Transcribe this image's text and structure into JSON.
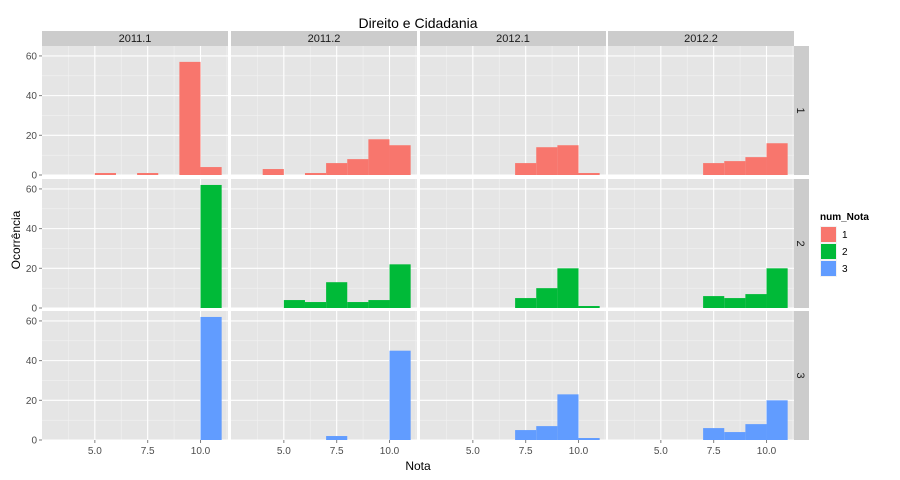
{
  "chart_data": {
    "type": "bar",
    "title": "Direito e Cidadania",
    "xlabel": "Nota",
    "ylabel": "Ocorrência",
    "col_facets": [
      "2011.1",
      "2011.2",
      "2012.1",
      "2012.2"
    ],
    "row_facets": [
      "1",
      "2",
      "3"
    ],
    "xlim": [
      2.5,
      11.3
    ],
    "ylim": [
      0,
      65
    ],
    "x_ticks": [
      5.0,
      7.5,
      10.0
    ],
    "x_tick_labels": [
      "5.0",
      "7.5",
      "10.0"
    ],
    "y_ticks": [
      0,
      20,
      40,
      60
    ],
    "y_tick_labels": [
      "0",
      "20",
      "40",
      "60"
    ],
    "bin_width": 1,
    "grid": true,
    "legend": {
      "title": "num_Nota",
      "placement": "right",
      "entries": [
        {
          "label": "1",
          "color": "#F8766D"
        },
        {
          "label": "2",
          "color": "#00BA38"
        },
        {
          "label": "3",
          "color": "#619CFF"
        }
      ]
    },
    "panels": [
      {
        "col": "2011.1",
        "row": "1",
        "bins": [
          {
            "x0": 5,
            "x1": 6,
            "y": 1
          },
          {
            "x0": 7,
            "x1": 8,
            "y": 1
          },
          {
            "x0": 9,
            "x1": 10,
            "y": 57
          },
          {
            "x0": 10,
            "x1": 11,
            "y": 4
          }
        ]
      },
      {
        "col": "2011.1",
        "row": "2",
        "bins": [
          {
            "x0": 10,
            "x1": 11,
            "y": 62
          }
        ]
      },
      {
        "col": "2011.1",
        "row": "3",
        "bins": [
          {
            "x0": 10,
            "x1": 11,
            "y": 62
          }
        ]
      },
      {
        "col": "2011.2",
        "row": "1",
        "bins": [
          {
            "x0": 4,
            "x1": 5,
            "y": 3
          },
          {
            "x0": 6,
            "x1": 7,
            "y": 1
          },
          {
            "x0": 7,
            "x1": 8,
            "y": 6
          },
          {
            "x0": 8,
            "x1": 9,
            "y": 8
          },
          {
            "x0": 9,
            "x1": 10,
            "y": 18
          },
          {
            "x0": 10,
            "x1": 11,
            "y": 15
          }
        ]
      },
      {
        "col": "2011.2",
        "row": "2",
        "bins": [
          {
            "x0": 5,
            "x1": 6,
            "y": 4
          },
          {
            "x0": 6,
            "x1": 7,
            "y": 3
          },
          {
            "x0": 7,
            "x1": 8,
            "y": 13
          },
          {
            "x0": 8,
            "x1": 9,
            "y": 3
          },
          {
            "x0": 9,
            "x1": 10,
            "y": 4
          },
          {
            "x0": 10,
            "x1": 11,
            "y": 22
          }
        ]
      },
      {
        "col": "2011.2",
        "row": "3",
        "bins": [
          {
            "x0": 7,
            "x1": 8,
            "y": 2
          },
          {
            "x0": 10,
            "x1": 11,
            "y": 45
          }
        ]
      },
      {
        "col": "2012.1",
        "row": "1",
        "bins": [
          {
            "x0": 7,
            "x1": 8,
            "y": 6
          },
          {
            "x0": 8,
            "x1": 9,
            "y": 14
          },
          {
            "x0": 9,
            "x1": 10,
            "y": 15
          },
          {
            "x0": 10,
            "x1": 11,
            "y": 1
          }
        ]
      },
      {
        "col": "2012.1",
        "row": "2",
        "bins": [
          {
            "x0": 7,
            "x1": 8,
            "y": 5
          },
          {
            "x0": 8,
            "x1": 9,
            "y": 10
          },
          {
            "x0": 9,
            "x1": 10,
            "y": 20
          },
          {
            "x0": 10,
            "x1": 11,
            "y": 1
          }
        ]
      },
      {
        "col": "2012.1",
        "row": "3",
        "bins": [
          {
            "x0": 7,
            "x1": 8,
            "y": 5
          },
          {
            "x0": 8,
            "x1": 9,
            "y": 7
          },
          {
            "x0": 9,
            "x1": 10,
            "y": 23
          },
          {
            "x0": 10,
            "x1": 11,
            "y": 1
          }
        ]
      },
      {
        "col": "2012.2",
        "row": "1",
        "bins": [
          {
            "x0": 7,
            "x1": 8,
            "y": 6
          },
          {
            "x0": 8,
            "x1": 9,
            "y": 7
          },
          {
            "x0": 9,
            "x1": 10,
            "y": 9
          },
          {
            "x0": 10,
            "x1": 11,
            "y": 16
          }
        ]
      },
      {
        "col": "2012.2",
        "row": "2",
        "bins": [
          {
            "x0": 7,
            "x1": 8,
            "y": 6
          },
          {
            "x0": 8,
            "x1": 9,
            "y": 5
          },
          {
            "x0": 9,
            "x1": 10,
            "y": 7
          },
          {
            "x0": 10,
            "x1": 11,
            "y": 20
          }
        ]
      },
      {
        "col": "2012.2",
        "row": "3",
        "bins": [
          {
            "x0": 7,
            "x1": 8,
            "y": 6
          },
          {
            "x0": 8,
            "x1": 9,
            "y": 4
          },
          {
            "x0": 9,
            "x1": 10,
            "y": 8
          },
          {
            "x0": 10,
            "x1": 11,
            "y": 20
          }
        ]
      }
    ]
  }
}
